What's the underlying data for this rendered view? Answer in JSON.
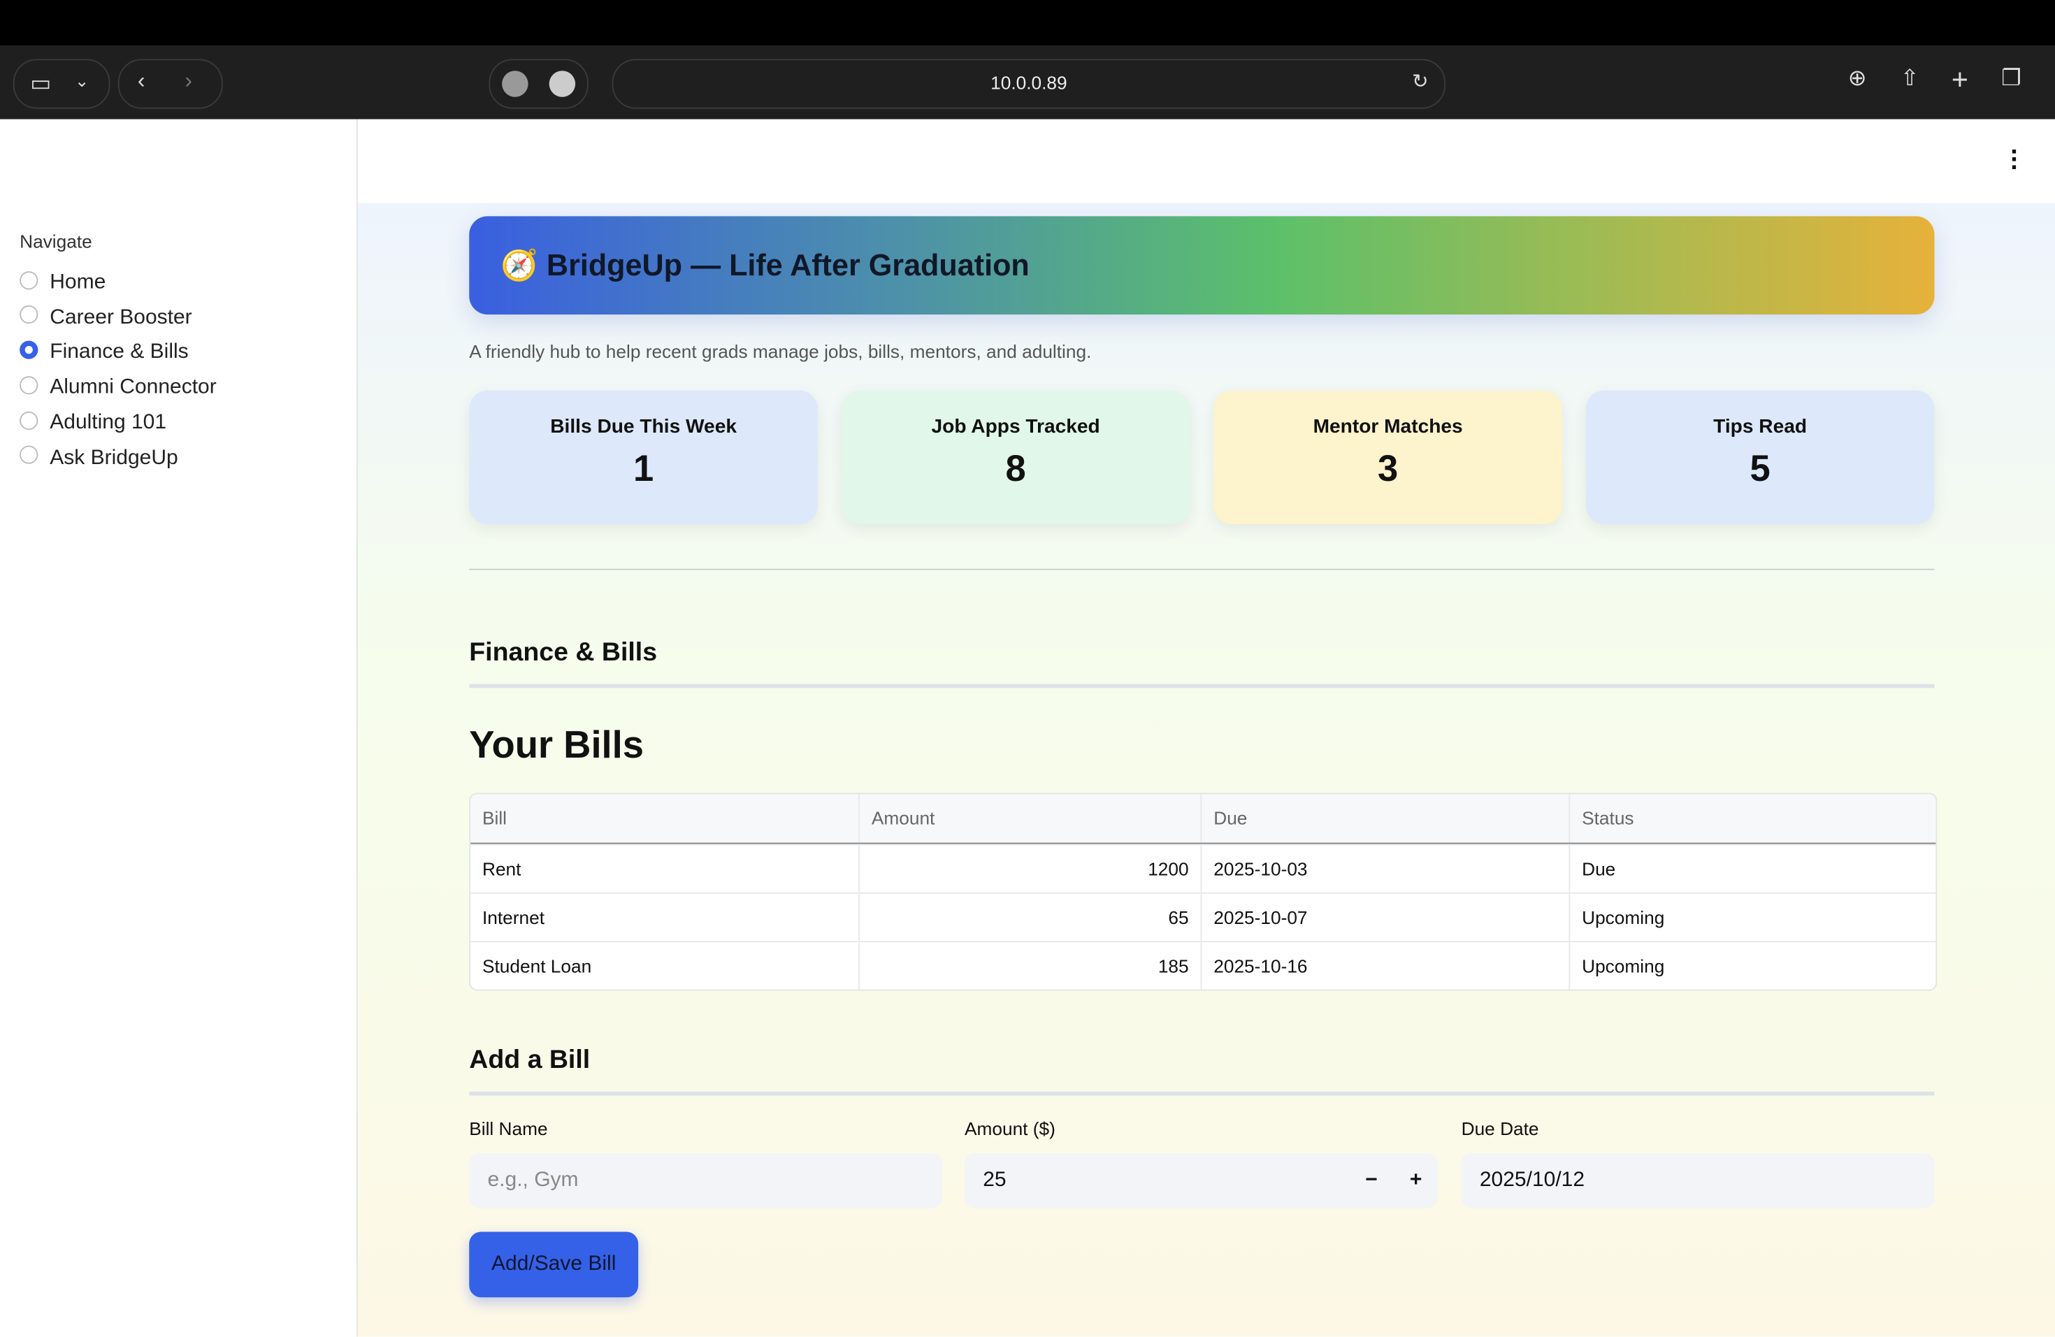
{
  "browser": {
    "url": "10.0.0.89"
  },
  "sidebar": {
    "title": "Navigate",
    "items": [
      "Home",
      "Career Booster",
      "Finance & Bills",
      "Alumni Connector",
      "Adulting 101",
      "Ask BridgeUp"
    ],
    "selected": 2
  },
  "header": {
    "title": "🧭 BridgeUp — Life After Graduation",
    "subtitle": "A friendly hub to help recent grads manage jobs, bills, mentors, and adulting."
  },
  "metrics": [
    {
      "label": "Bills Due This Week",
      "value": "1",
      "color": "#dde8fa"
    },
    {
      "label": "Job Apps Tracked",
      "value": "8",
      "color": "#e0f7e9"
    },
    {
      "label": "Mentor Matches",
      "value": "3",
      "color": "#fdf3cc"
    },
    {
      "label": "Tips Read",
      "value": "5",
      "color": "#dde8fa"
    }
  ],
  "section": {
    "title": "Finance & Bills",
    "subtitle": "Your Bills"
  },
  "table": {
    "columns": [
      "Bill",
      "Amount",
      "Due",
      "Status"
    ],
    "rows": [
      [
        "Rent",
        1200,
        "2025-10-03",
        "Due"
      ],
      [
        "Internet",
        65,
        "2025-10-07",
        "Upcoming"
      ],
      [
        "Student Loan",
        185,
        "2025-10-16",
        "Upcoming"
      ]
    ]
  },
  "form": {
    "title": "Add a Bill",
    "fields": [
      {
        "label": "Bill Name",
        "placeholder": "e.g., Gym"
      },
      {
        "label": "Amount ($)",
        "value": "25"
      },
      {
        "label": "Due Date",
        "value": "2025/10/12"
      }
    ],
    "button": "Add/Save Bill"
  }
}
